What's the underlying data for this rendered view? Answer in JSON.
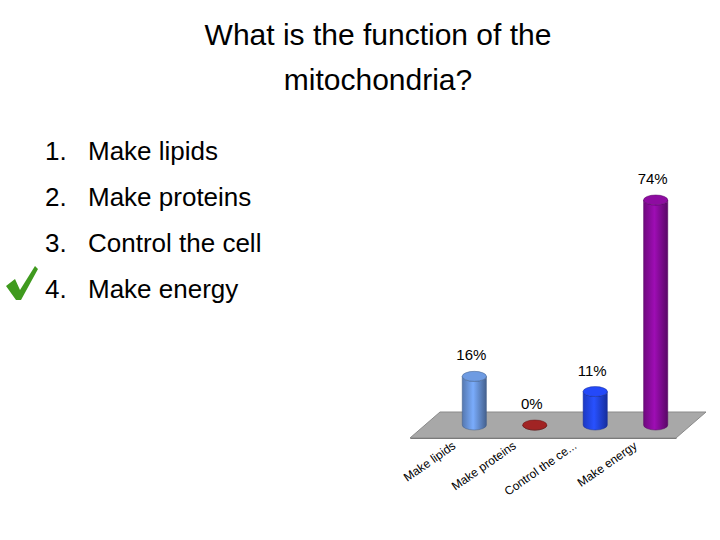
{
  "chart_data": {
    "type": "bar",
    "title": "What is the function of the mitochondria?",
    "categories": [
      "Make lipids",
      "Make proteins",
      "Control the ce...",
      "Make energy"
    ],
    "values": [
      16,
      0,
      11,
      74
    ],
    "value_labels": [
      "16%",
      "0%",
      "11%",
      "74%"
    ],
    "colors": [
      "#5f86c4",
      "#8c1f1f",
      "#1f3fd8",
      "#7b0a8c"
    ],
    "ylim": [
      0,
      74
    ],
    "data_labels": true,
    "tick_labels": "x"
  },
  "slide": {
    "options": [
      {
        "number": "1.",
        "text": "Make lipids"
      },
      {
        "number": "2.",
        "text": "Make proteins"
      },
      {
        "number": "3.",
        "text": "Control the cell"
      },
      {
        "number": "4.",
        "text": "Make energy"
      }
    ],
    "correct": 3
  }
}
